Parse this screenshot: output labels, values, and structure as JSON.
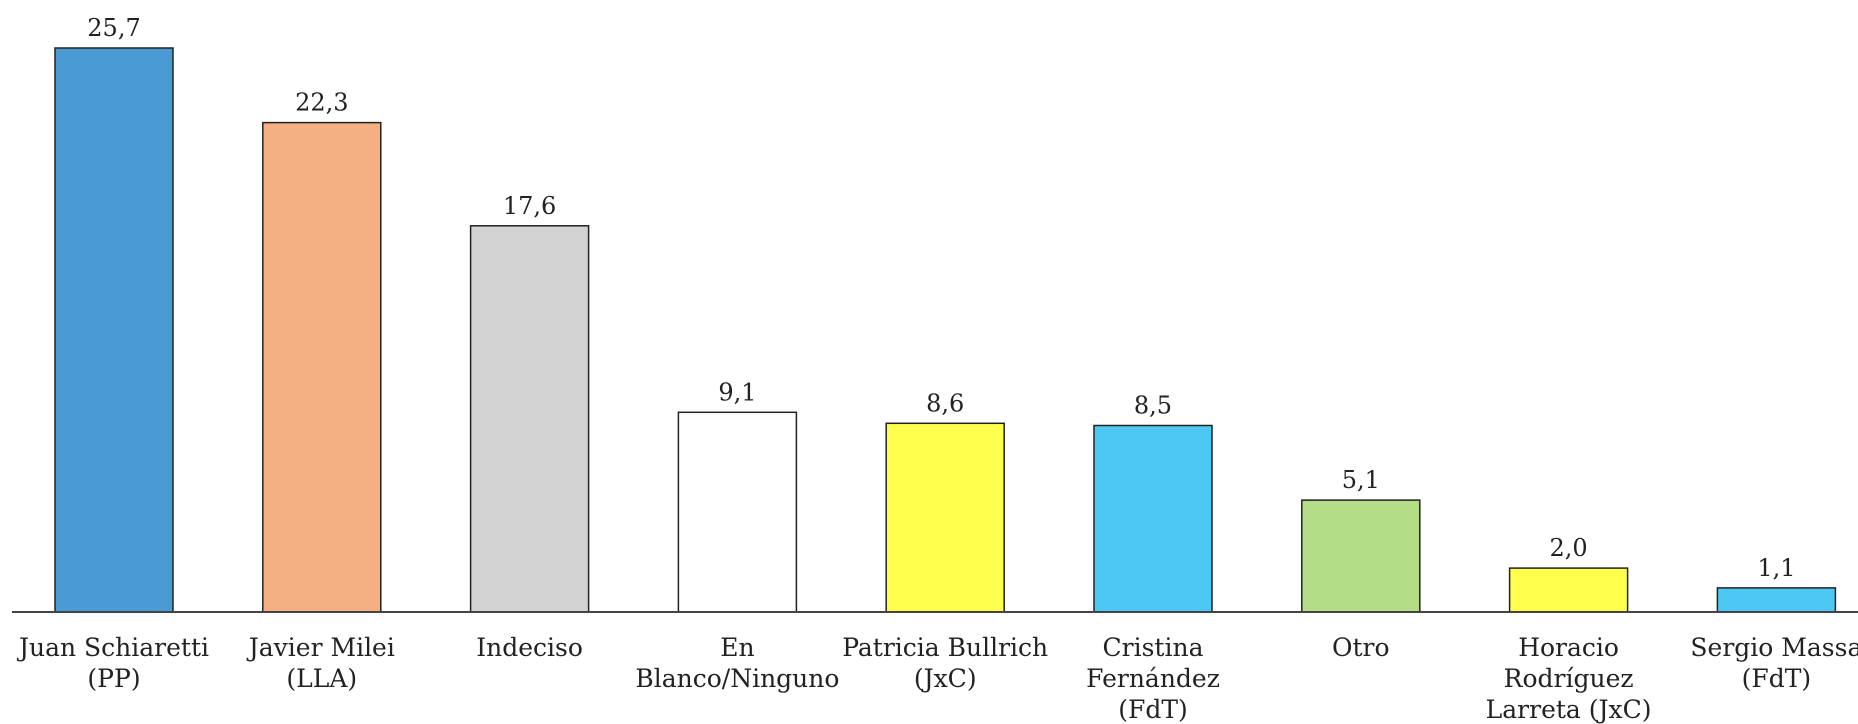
{
  "chart_data": {
    "type": "bar",
    "categories": [
      [
        "Juan Schiaretti",
        "(PP)"
      ],
      [
        "Javier Milei",
        "(LLA)"
      ],
      [
        "Indeciso"
      ],
      [
        "En",
        "Blanco/Ninguno"
      ],
      [
        "Patricia Bullrich",
        "(JxC)"
      ],
      [
        "Cristina",
        "Fernández",
        "(FdT)"
      ],
      [
        "Otro"
      ],
      [
        "Horacio",
        "Rodríguez",
        "Larreta (JxC)"
      ],
      [
        "Sergio Massa",
        "(FdT)"
      ]
    ],
    "values": [
      25.7,
      22.3,
      17.6,
      9.1,
      8.6,
      8.5,
      5.1,
      2.0,
      1.1
    ],
    "value_labels": [
      "25,7",
      "22,3",
      "17,6",
      "9,1",
      "8,6",
      "8,5",
      "5,1",
      "2,0",
      "1,1"
    ],
    "colors": [
      "#4a9bd4",
      "#f4b083",
      "#d3d3d3",
      "#ffffff",
      "#ffff4d",
      "#4dc8f2",
      "#b3de87",
      "#ffff4d",
      "#4dc8f2"
    ],
    "title": "",
    "xlabel": "",
    "ylabel": "",
    "ylim": [
      0,
      28
    ],
    "grid": false,
    "legend": "none"
  }
}
